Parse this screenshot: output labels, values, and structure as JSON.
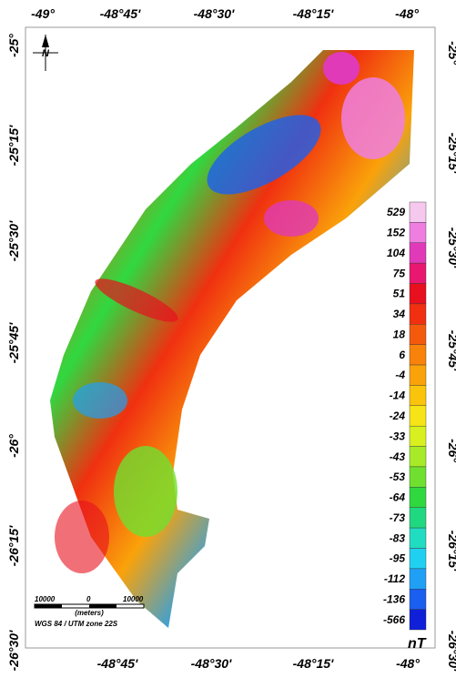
{
  "map": {
    "top_labels": [
      "-49°",
      "-48°45'",
      "-48°30'",
      "-48°15'",
      "-48°"
    ],
    "bottom_labels": [
      "-48°45'",
      "-48°30'",
      "-48°15'",
      "-48°"
    ],
    "left_labels": [
      "-25°",
      "-25°15'",
      "-25°30'",
      "-25°45'",
      "-26°",
      "-26°15'",
      "-26°30'"
    ],
    "right_labels": [
      "-25°",
      "-25°15'",
      "-25°30'",
      "-25°45'",
      "-26°",
      "-26°15'",
      "-26°30'"
    ],
    "north": "N",
    "scale_bar": {
      "left": "10000",
      "middle": "0",
      "right": "10000",
      "unit": "(meters)"
    },
    "projection": "WGS 84 / UTM zone 22S",
    "legend": {
      "unit": "nT",
      "items": [
        {
          "label": "529",
          "color": "#f6c8ee"
        },
        {
          "label": "152",
          "color": "#ee7fe0"
        },
        {
          "label": "104",
          "color": "#e03ab8"
        },
        {
          "label": "75",
          "color": "#e81870"
        },
        {
          "label": "51",
          "color": "#e8101e"
        },
        {
          "label": "34",
          "color": "#f03010"
        },
        {
          "label": "18",
          "color": "#f45a0c"
        },
        {
          "label": "6",
          "color": "#f8820a"
        },
        {
          "label": "-4",
          "color": "#faa20a"
        },
        {
          "label": "-14",
          "color": "#fbc40c"
        },
        {
          "label": "-24",
          "color": "#f6e418"
        },
        {
          "label": "-33",
          "color": "#d8f020"
        },
        {
          "label": "-43",
          "color": "#a8ea28"
        },
        {
          "label": "-53",
          "color": "#70e030"
        },
        {
          "label": "-64",
          "color": "#30d840"
        },
        {
          "label": "-73",
          "color": "#20d880"
        },
        {
          "label": "-83",
          "color": "#20dcc0"
        },
        {
          "label": "-95",
          "color": "#20d0f0"
        },
        {
          "label": "-112",
          "color": "#20a0f4"
        },
        {
          "label": "-136",
          "color": "#1a60f0"
        },
        {
          "label": "-566",
          "color": "#1020d8"
        }
      ]
    }
  }
}
